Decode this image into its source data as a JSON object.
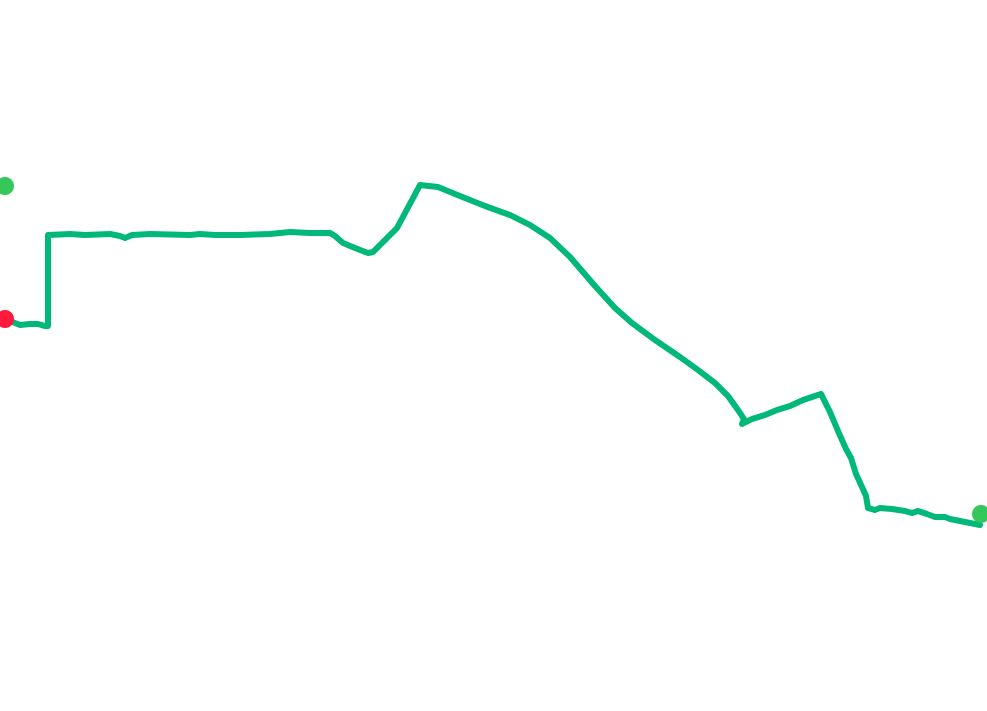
{
  "map": {
    "route": {
      "color": "#00b877"
    },
    "markers": [
      {
        "kind": "start",
        "color": "#ff1a3c"
      },
      {
        "kind": "waypoint",
        "color": "#35c759"
      },
      {
        "kind": "end",
        "color": "#35c759"
      }
    ]
  }
}
